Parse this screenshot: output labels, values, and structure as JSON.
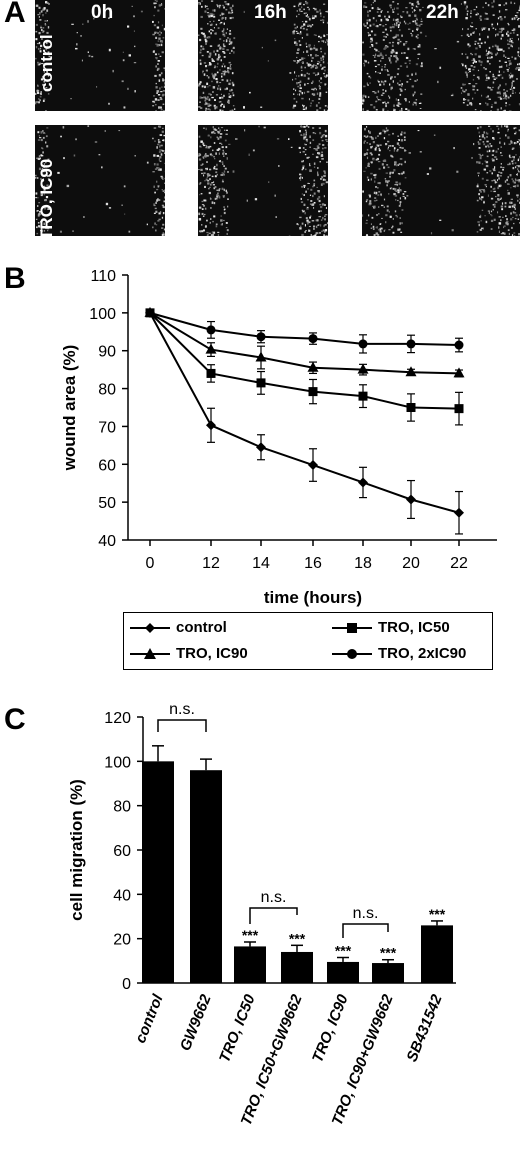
{
  "panels": {
    "a": "A",
    "b": "B",
    "c": "C"
  },
  "panel_a": {
    "time_points": [
      "0h",
      "16h",
      "22h"
    ],
    "row_labels": [
      "control",
      "TRO, IC90"
    ],
    "gap_widths": [
      0.8,
      0.45,
      0.25,
      0.8,
      0.55,
      0.45
    ]
  },
  "chart_data": [
    {
      "type": "line",
      "xlabel": "time (hours)",
      "ylabel": "wound area (%)",
      "ylim": [
        40,
        110
      ],
      "x": [
        0,
        12,
        14,
        16,
        18,
        20,
        22
      ],
      "series": [
        {
          "name": "control",
          "marker": "diamond",
          "values": [
            100,
            70.3,
            64.5,
            59.8,
            55.2,
            50.7,
            47.2
          ],
          "errors": [
            0,
            4.5,
            3.3,
            4.3,
            4.0,
            5.0,
            5.6
          ]
        },
        {
          "name": "TRO, IC50",
          "marker": "square",
          "values": [
            100,
            84,
            81.5,
            79.2,
            78,
            75,
            74.7
          ],
          "errors": [
            0,
            2.3,
            3.0,
            3.2,
            3.0,
            3.6,
            4.3
          ]
        },
        {
          "name": "TRO, IC90",
          "marker": "triangle",
          "values": [
            100,
            90.3,
            88.2,
            85.5,
            85,
            84.3,
            84
          ],
          "errors": [
            0,
            1.8,
            3.0,
            1.5,
            1.4,
            0.8,
            0.9
          ]
        },
        {
          "name": "TRO, 2xIC90",
          "marker": "circle",
          "values": [
            100,
            95.5,
            93.7,
            93.2,
            91.8,
            91.8,
            91.5
          ],
          "errors": [
            0,
            2.2,
            1.6,
            1.5,
            2.4,
            2.3,
            1.8
          ]
        }
      ],
      "legend": "below"
    },
    {
      "type": "bar",
      "ylabel": "cell migration (%)",
      "ylim": [
        0,
        120
      ],
      "categories": [
        "control",
        "GW9662",
        "TRO, IC50",
        "TRO, IC50+GW9662",
        "TRO, IC90",
        "TRO, IC90+GW9662",
        "SB431542"
      ],
      "values": [
        100,
        96,
        16.5,
        14,
        9.5,
        9,
        26
      ],
      "errors": [
        7,
        5,
        2,
        3,
        2,
        1.5,
        2
      ],
      "significance": [
        "",
        "",
        "***",
        "***",
        "***",
        "***",
        "***"
      ],
      "brackets": [
        {
          "from": "control",
          "to": "GW9662",
          "label": "n.s."
        },
        {
          "from": "TRO, IC50",
          "to": "TRO, IC50+GW9662",
          "label": "n.s."
        },
        {
          "from": "TRO, IC90",
          "to": "TRO, IC90+GW9662",
          "label": "n.s."
        }
      ]
    }
  ]
}
